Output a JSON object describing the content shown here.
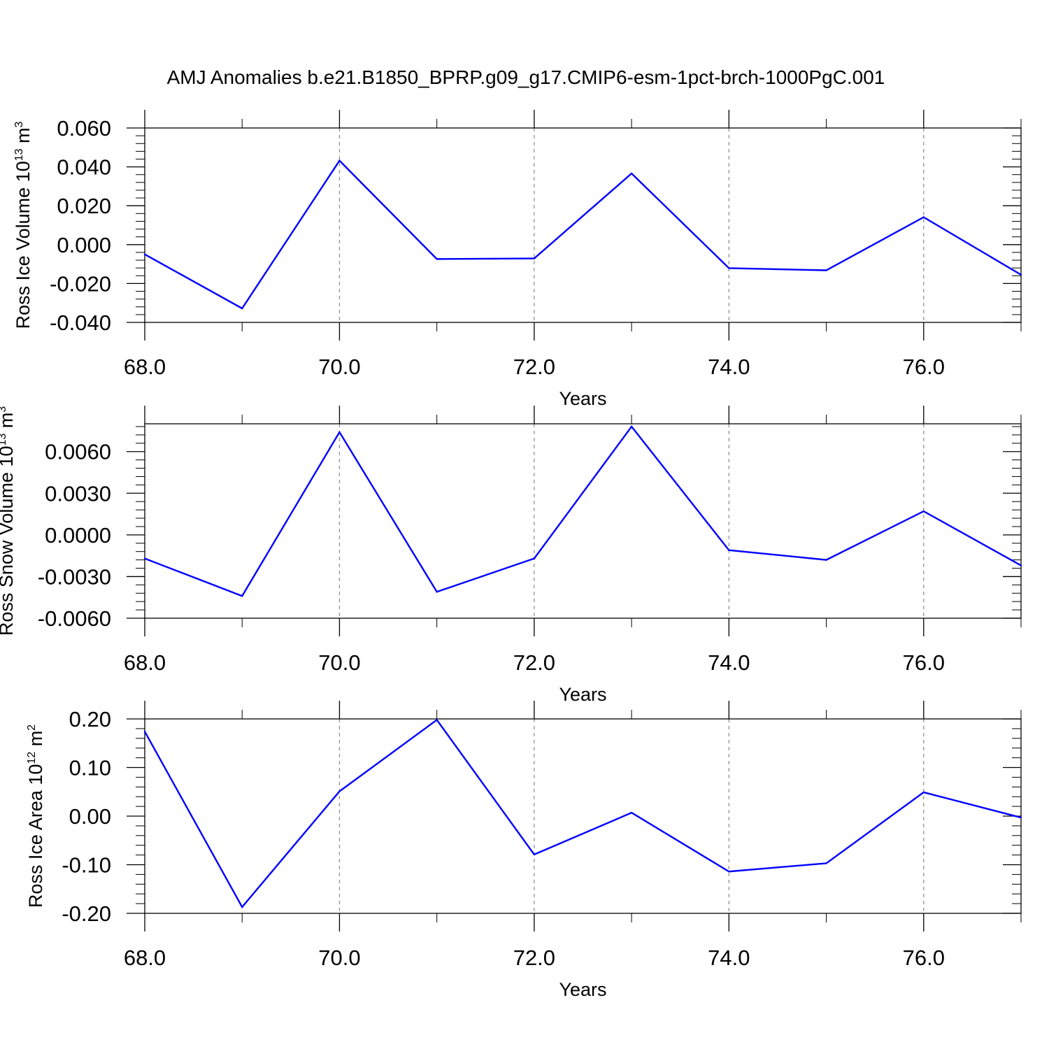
{
  "title": "AMJ Anomalies b.e21.B1850_BPRP.g09_g17.CMIP6-esm-1pct-brch-1000PgC.001",
  "line_color": "#0000ff",
  "chart_data": [
    {
      "type": "line",
      "xlabel": "Years",
      "ylabel": {
        "text": "Ross Ice Volume 10",
        "sup": "13",
        "after": " m",
        "sup2": "3"
      },
      "xlim": [
        68,
        77
      ],
      "ylim": [
        -0.04,
        0.06
      ],
      "x_ticks": [
        68,
        70,
        72,
        74,
        76
      ],
      "x_tick_labels": [
        "68.0",
        "70.0",
        "72.0",
        "74.0",
        "76.0"
      ],
      "y_ticks": [
        0.06,
        0.04,
        0.02,
        0.0,
        -0.02,
        -0.04
      ],
      "y_tick_labels": [
        "0.060",
        "0.040",
        "0.020",
        "0.000",
        "-0.020",
        "-0.040"
      ],
      "y_minor_step": 0.004,
      "grid": "dashed vertical lines at major x ticks",
      "series": [
        {
          "x": [
            68,
            69,
            70,
            71,
            72,
            73,
            74,
            75,
            76,
            77
          ],
          "values": [
            -0.005,
            -0.0328,
            0.0432,
            -0.0074,
            -0.0071,
            0.0366,
            -0.0121,
            -0.0132,
            0.0141,
            -0.0155
          ]
        }
      ]
    },
    {
      "type": "line",
      "xlabel": "Years",
      "ylabel": {
        "text": "Ross Snow Volume 10",
        "sup": "13",
        "after": " m",
        "sup2": "3"
      },
      "xlim": [
        68,
        77
      ],
      "ylim": [
        -0.006,
        0.008
      ],
      "x_ticks": [
        68,
        70,
        72,
        74,
        76
      ],
      "x_tick_labels": [
        "68.0",
        "70.0",
        "72.0",
        "74.0",
        "76.0"
      ],
      "y_ticks": [
        0.006,
        0.003,
        0.0,
        -0.003,
        -0.006
      ],
      "y_tick_labels": [
        "0.0060",
        "0.0030",
        "0.0000",
        "-0.0030",
        "-0.0060"
      ],
      "y_minor_step": 0.0006,
      "grid": "dashed vertical lines at major x ticks",
      "series": [
        {
          "x": [
            68,
            69,
            70,
            71,
            72,
            73,
            74,
            75,
            76,
            77
          ],
          "values": [
            -0.0017,
            -0.0044,
            0.0074,
            -0.0041,
            -0.0017,
            0.0078,
            -0.0011,
            -0.0018,
            0.0017,
            -0.0022
          ]
        }
      ]
    },
    {
      "type": "line",
      "xlabel": "Years",
      "ylabel": {
        "text": "Ross Ice Area 10",
        "sup": "12",
        "after": " m",
        "sup2": "2"
      },
      "xlim": [
        68,
        77
      ],
      "ylim": [
        -0.2,
        0.2
      ],
      "x_ticks": [
        68,
        70,
        72,
        74,
        76
      ],
      "x_tick_labels": [
        "68.0",
        "70.0",
        "72.0",
        "74.0",
        "76.0"
      ],
      "y_ticks": [
        0.2,
        0.1,
        0.0,
        -0.1,
        -0.2
      ],
      "y_tick_labels": [
        "0.20",
        "0.10",
        "0.00",
        "-0.10",
        "-0.20"
      ],
      "y_minor_step": 0.02,
      "grid": "dashed vertical lines at major x ticks",
      "series": [
        {
          "x": [
            68,
            69,
            70,
            71,
            72,
            73,
            74,
            75,
            76,
            77
          ],
          "values": [
            0.174,
            -0.187,
            0.051,
            0.198,
            -0.079,
            0.007,
            -0.114,
            -0.097,
            0.049,
            -0.003
          ]
        }
      ]
    }
  ]
}
